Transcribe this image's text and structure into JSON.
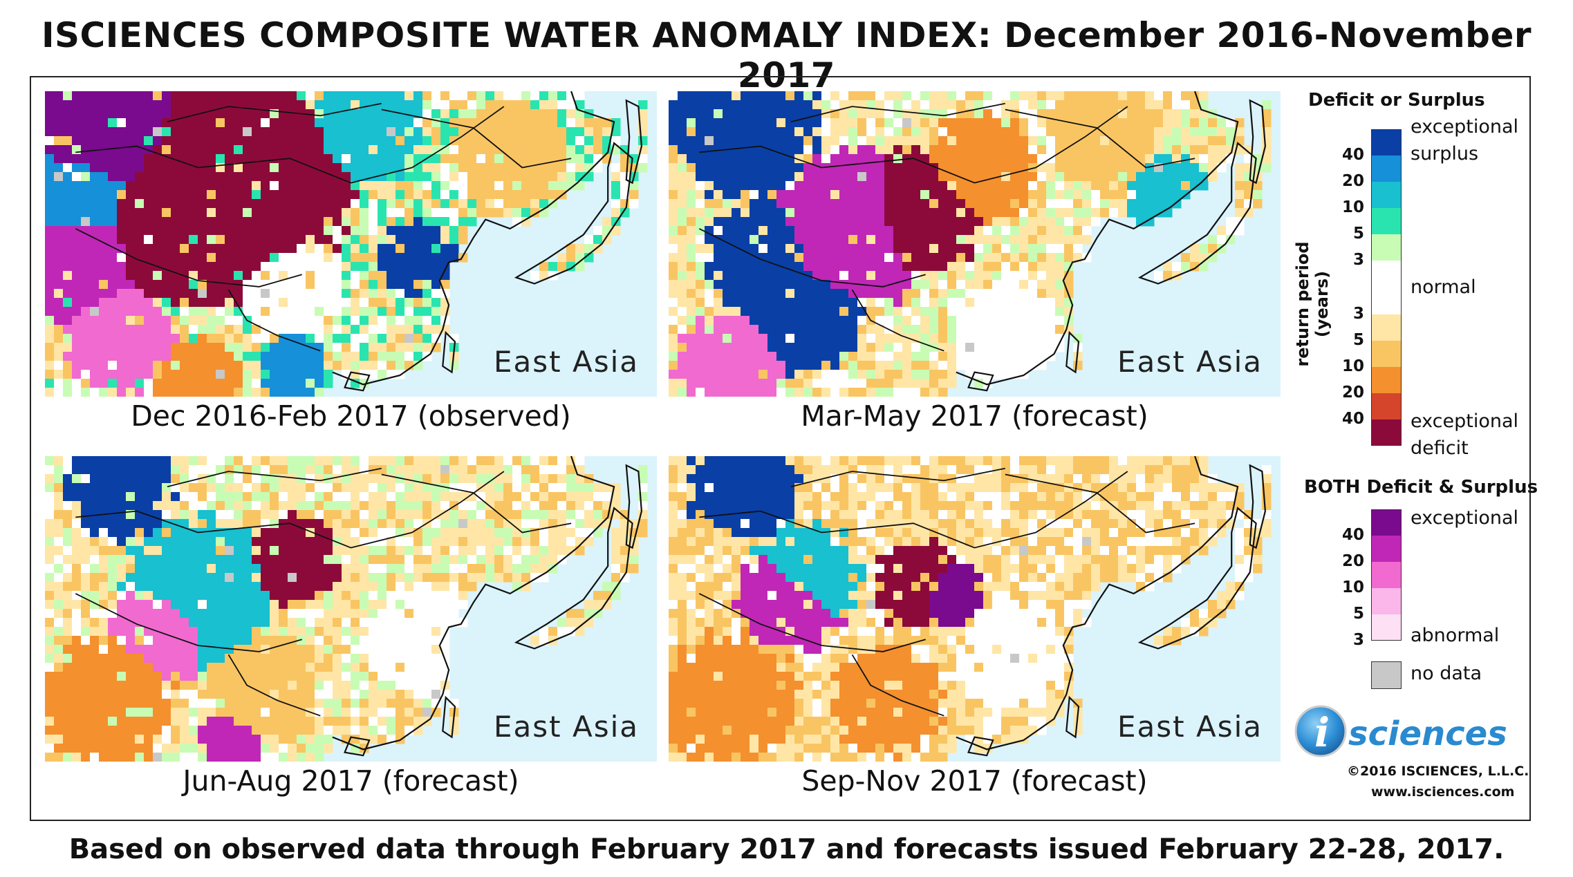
{
  "title": "ISCIENCES COMPOSITE WATER ANOMALY INDEX: December 2016-November 2017",
  "panels": [
    {
      "region": "East Asia",
      "caption": "Dec 2016-Feb 2017 (observed)"
    },
    {
      "region": "East Asia",
      "caption": "Mar-May 2017 (forecast)"
    },
    {
      "region": "East Asia",
      "caption": "Jun-Aug 2017 (forecast)"
    },
    {
      "region": "East Asia",
      "caption": "Sep-Nov 2017 (forecast)"
    }
  ],
  "legend": {
    "deficit_surplus_title": "Deficit or Surplus",
    "axis_label": "return period (years)",
    "surplus_ticks": [
      "40",
      "20",
      "10",
      "5",
      "3"
    ],
    "deficit_ticks": [
      "3",
      "5",
      "10",
      "20",
      "40"
    ],
    "exceptional_surplus_1": "exceptional",
    "exceptional_surplus_2": "surplus",
    "normal": "normal",
    "exceptional_deficit_1": "exceptional",
    "exceptional_deficit_2": "deficit",
    "both_title": "BOTH Deficit & Surplus",
    "both_ticks": [
      "40",
      "20",
      "10",
      "5",
      "3"
    ],
    "both_top": "exceptional",
    "both_bottom": "abnormal",
    "no_data": "no data",
    "colors": {
      "surplus": [
        "#0a3fa6",
        "#1690d8",
        "#18c0d0",
        "#2ae4b0",
        "#c8fcb4"
      ],
      "normal": "#ffffff",
      "deficit": [
        "#ffe6a6",
        "#f9c562",
        "#f4902e",
        "#d5452b",
        "#8c0a3a"
      ],
      "both": [
        "#7a0a8e",
        "#c027b6",
        "#f06ad0",
        "#fbb6ea",
        "#fde0f4"
      ],
      "no_data": "#c8c8c8",
      "water": "#dbf3fb"
    }
  },
  "logo": {
    "letter": "i",
    "word": "sciences"
  },
  "copyright": "©2016 ISCIENCES, L.L.C.",
  "url": "www.isciences.com",
  "footer": "Based on observed data through February 2017 and forecasts issued February 22-28, 2017."
}
